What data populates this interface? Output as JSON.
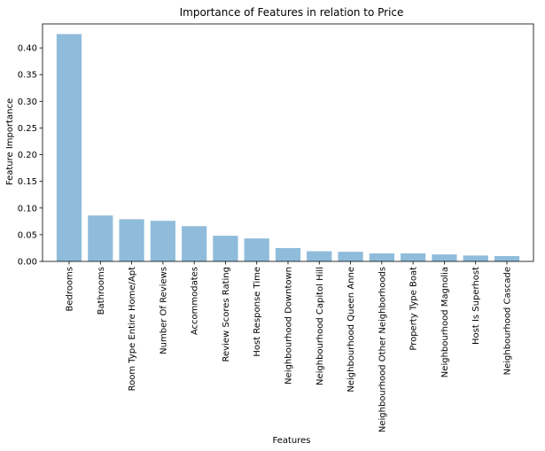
{
  "chart_data": {
    "type": "bar",
    "title": "Importance of Features in relation to Price",
    "xlabel": "Features",
    "ylabel": "Feature Importance",
    "ylim": [
      0,
      0.445
    ],
    "yticks": [
      "0.00",
      "0.05",
      "0.10",
      "0.15",
      "0.20",
      "0.25",
      "0.30",
      "0.35",
      "0.40"
    ],
    "grid": false,
    "bar_color": "#8fbcdb",
    "categories": [
      "Bedrooms",
      "Bathrooms",
      "Room Type Entire Home/Apt",
      "Number Of Reviews",
      "Accommodates",
      "Review Scores Rating",
      "Host Response Time",
      "Neighbourhood Downtown",
      "Neighbourhood Capitol Hill",
      "Neighbourhood Queen Anne",
      "Neighbourhood Other Neighborhoods",
      "Property Type Boat",
      "Neighbourhood Magnolia",
      "Host Is Superhost",
      "Neighbourhood Cascade"
    ],
    "values": [
      0.426,
      0.086,
      0.079,
      0.076,
      0.066,
      0.048,
      0.043,
      0.025,
      0.019,
      0.018,
      0.015,
      0.015,
      0.013,
      0.011,
      0.01
    ]
  }
}
